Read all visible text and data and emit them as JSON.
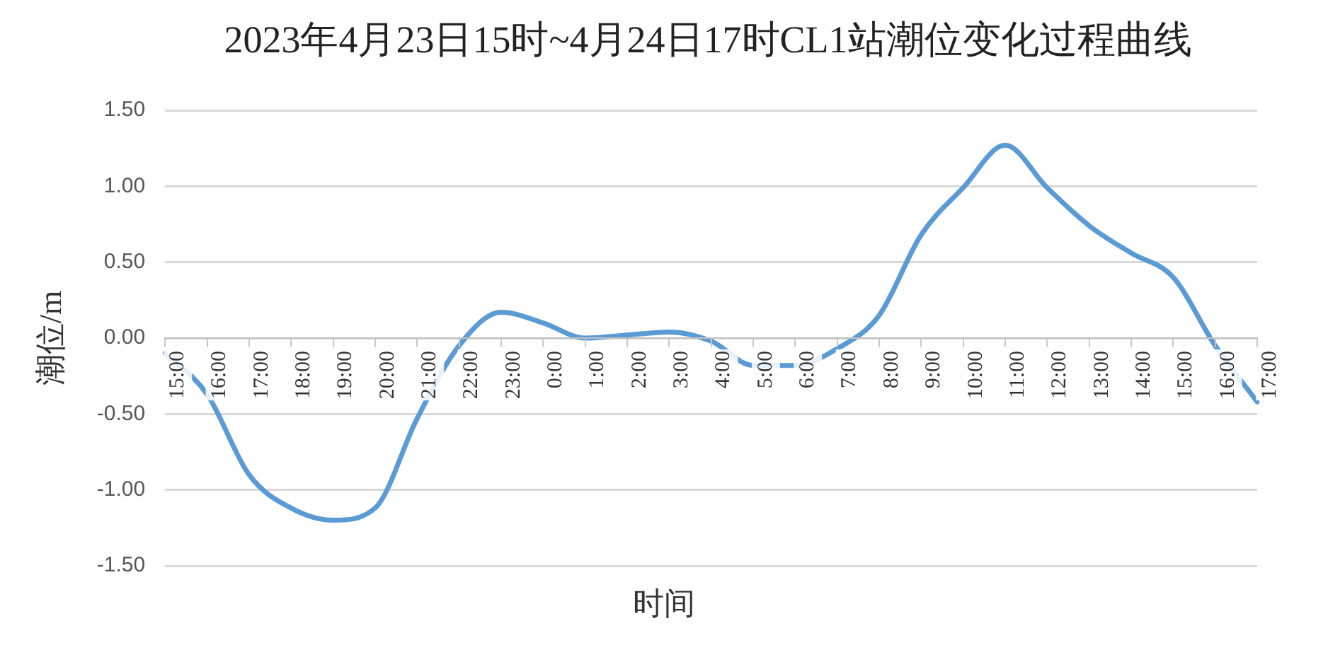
{
  "chart_data": {
    "type": "line",
    "title": "2023年4月23日15时~4月24日17时CL1站潮位变化过程曲线",
    "xlabel": "时间",
    "ylabel": "潮位/m",
    "categories": [
      "15:00",
      "16:00",
      "17:00",
      "18:00",
      "19:00",
      "20:00",
      "21:00",
      "22:00",
      "23:00",
      "0:00",
      "1:00",
      "2:00",
      "3:00",
      "4:00",
      "5:00",
      "6:00",
      "7:00",
      "8:00",
      "9:00",
      "10:00",
      "11:00",
      "12:00",
      "13:00",
      "14:00",
      "15:00",
      "16:00",
      "17:00"
    ],
    "series": [
      {
        "color": "#5b9bd5",
        "values": [
          -0.1,
          -0.37,
          -0.9,
          -1.12,
          -1.2,
          -1.12,
          -0.53,
          -0.05,
          0.17,
          0.1,
          0.0,
          0.02,
          0.04,
          -0.02,
          -0.18,
          -0.18,
          -0.07,
          0.15,
          0.68,
          0.99,
          1.27,
          0.99,
          0.74,
          0.56,
          0.4,
          -0.05,
          -0.42
        ]
      }
    ],
    "ylim": [
      -1.5,
      1.5
    ],
    "yticks": [
      {
        "value": -1.5,
        "label": "-1.50"
      },
      {
        "value": -1,
        "label": "-1.00"
      },
      {
        "value": -0.5,
        "label": "-0.50"
      },
      {
        "value": 0,
        "label": "0.00"
      },
      {
        "value": 0.5,
        "label": "0.50"
      },
      {
        "value": 1,
        "label": "1.00"
      },
      {
        "value": 1.5,
        "label": "1.50"
      }
    ],
    "grid": "y",
    "legend": false,
    "marker": "none",
    "line_style": "solid"
  }
}
